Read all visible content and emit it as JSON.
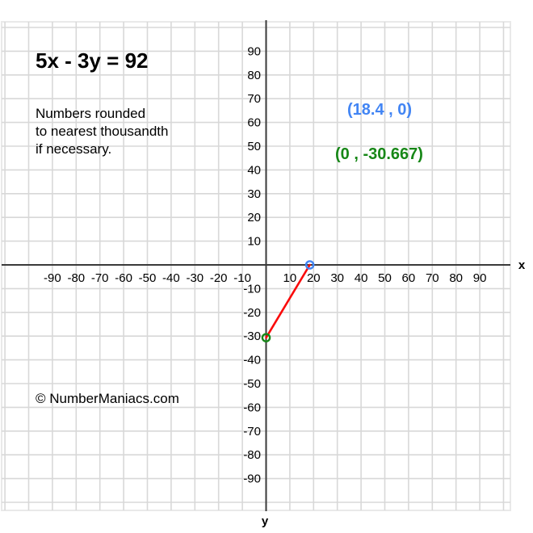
{
  "window": {
    "background": "#ffffff"
  },
  "header": {
    "equation": "5x - 3y = 92"
  },
  "note": {
    "line1": "Numbers rounded",
    "line2": "to nearest thousandth",
    "line3": "if necessary."
  },
  "footer": {
    "copyright": "© NumberManiacs.com"
  },
  "chart_data": {
    "type": "line",
    "title": "5x - 3y = 92",
    "xlabel": "x",
    "ylabel": "y",
    "xlim": [
      -110,
      100
    ],
    "ylim": [
      -100,
      100
    ],
    "grid": true,
    "tick_step": 10,
    "x_ticks": [
      -90,
      -80,
      -70,
      -60,
      -50,
      -40,
      -30,
      -20,
      -10,
      10,
      20,
      30,
      40,
      50,
      60,
      70,
      80,
      90
    ],
    "y_ticks": [
      90,
      80,
      70,
      60,
      50,
      40,
      30,
      20,
      10,
      -10,
      -20,
      -30,
      -40,
      -50,
      -60,
      -70,
      -80,
      -90
    ],
    "series": [
      {
        "name": "segment-between-intercepts",
        "color": "#fa0a0a",
        "points": [
          {
            "x": 0,
            "y": -30.667
          },
          {
            "x": 18.4,
            "y": 0
          }
        ]
      }
    ],
    "points": [
      {
        "name": "x-intercept",
        "x": 18.4,
        "y": 0,
        "color": "#4285f4",
        "marker": "open-circle"
      },
      {
        "name": "y-intercept",
        "x": 0,
        "y": -30.667,
        "color": "#178717",
        "marker": "open-circle"
      }
    ],
    "annotations": [
      {
        "text": "(18.4 , 0)",
        "color": "#4285f4",
        "refers_to": "x-intercept"
      },
      {
        "text": "(0 , -30.667)",
        "color": "#178717",
        "refers_to": "y-intercept"
      }
    ],
    "colors": {
      "grid": "#d8d8d8",
      "border": "#e9e9e9",
      "axis": "#3a3a3a",
      "tick_text": "#000000"
    }
  }
}
